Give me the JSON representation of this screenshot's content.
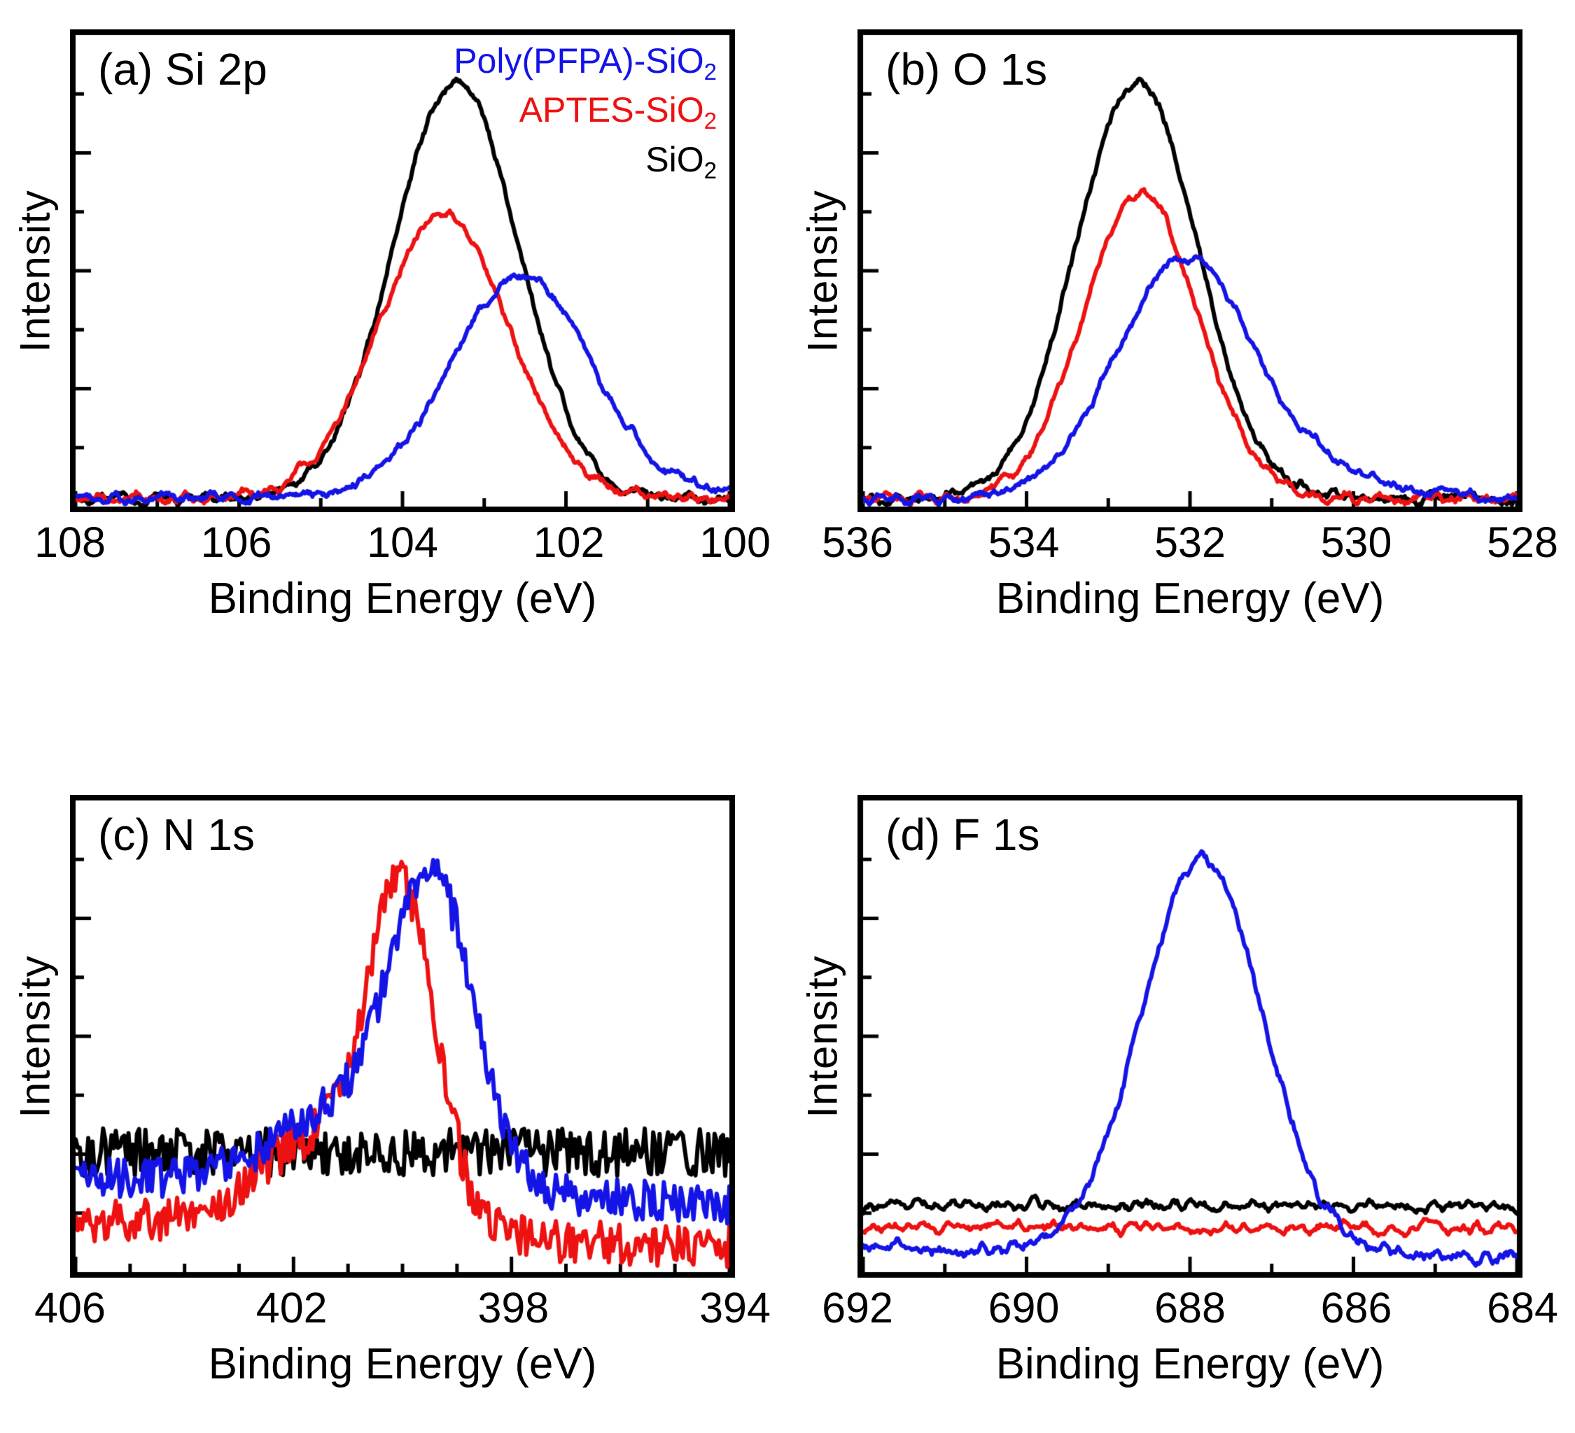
{
  "chart_data": [
    {
      "id": "a",
      "type": "line",
      "panel_label": "(a) Si 2p",
      "xlabel": "Binding Energy (eV)",
      "ylabel": "Intensity",
      "x_range": [
        108,
        100
      ],
      "xticks": [
        108,
        106,
        104,
        102,
        100
      ],
      "xtick_labels": [
        "108",
        "106",
        "104",
        "102",
        "100"
      ],
      "x_minor_step": 1,
      "ylim": [
        0,
        1.13
      ],
      "samples": 520,
      "grid": false,
      "series": [
        {
          "name": "SiO2",
          "color": "#000000",
          "baseline": 0.02,
          "noise": 0.012,
          "noise_smooth": 3,
          "peaks": [
            {
              "center": 103.35,
              "fwhm": 1.8,
              "amplitude": 1.0
            }
          ]
        },
        {
          "name": "APTES-SiO2",
          "color": "#ee1111",
          "baseline": 0.02,
          "noise": 0.012,
          "noise_smooth": 3,
          "peaks": [
            {
              "center": 103.5,
              "fwhm": 1.9,
              "amplitude": 0.68
            }
          ]
        },
        {
          "name": "Poly(PFPA)-SiO2",
          "color": "#1414e6",
          "baseline": 0.02,
          "noise": 0.012,
          "noise_smooth": 3,
          "peaks": [
            {
              "center": 102.55,
              "fwhm": 2.05,
              "amplitude": 0.53
            }
          ]
        }
      ],
      "legend": [
        {
          "text": "Poly(PFPA)-SiO",
          "sub": "2",
          "color": "#1414e6"
        },
        {
          "text": "APTES-SiO",
          "sub": "2",
          "color": "#ee1111"
        },
        {
          "text": "SiO",
          "sub": "2",
          "color": "#000000"
        }
      ]
    },
    {
      "id": "b",
      "type": "line",
      "panel_label": "(b) O 1s",
      "xlabel": "Binding Energy (eV)",
      "ylabel": "Intensity",
      "x_range": [
        536,
        528
      ],
      "xticks": [
        536,
        534,
        532,
        530,
        528
      ],
      "xtick_labels": [
        "536",
        "534",
        "532",
        "530",
        "528"
      ],
      "x_minor_step": 1,
      "ylim": [
        0,
        1.13
      ],
      "samples": 520,
      "grid": false,
      "series": [
        {
          "name": "SiO2",
          "color": "#000000",
          "baseline": 0.02,
          "noise": 0.012,
          "noise_smooth": 3,
          "peaks": [
            {
              "center": 532.65,
              "fwhm": 1.75,
              "amplitude": 1.0
            }
          ]
        },
        {
          "name": "APTES-SiO2",
          "color": "#ee1111",
          "baseline": 0.02,
          "noise": 0.012,
          "noise_smooth": 3,
          "peaks": [
            {
              "center": 532.6,
              "fwhm": 1.65,
              "amplitude": 0.73
            }
          ]
        },
        {
          "name": "Poly(PFPA)-SiO2",
          "color": "#1414e6",
          "baseline": 0.02,
          "noise": 0.012,
          "noise_smooth": 3,
          "peaks": [
            {
              "center": 532.1,
              "fwhm": 1.95,
              "amplitude": 0.55
            },
            {
              "center": 530.8,
              "fwhm": 2.4,
              "amplitude": 0.06
            }
          ]
        }
      ]
    },
    {
      "id": "c",
      "type": "line",
      "panel_label": "(c) N 1s",
      "xlabel": "Binding Energy (eV)",
      "ylabel": "Intensity",
      "x_range": [
        406,
        394
      ],
      "xticks": [
        406,
        402,
        398,
        394
      ],
      "xtick_labels": [
        "406",
        "402",
        "398",
        "394"
      ],
      "x_minor_step": 1,
      "ylim": [
        0,
        1.18
      ],
      "samples": 310,
      "grid": false,
      "series": [
        {
          "name": "SiO2",
          "color": "#000000",
          "baseline": 0.3,
          "noise": 0.06,
          "noise_smooth": 0,
          "peaks": []
        },
        {
          "name": "APTES-SiO2",
          "color": "#ee1111",
          "baseline": [
            0.13,
            0.06
          ],
          "noise": 0.055,
          "noise_smooth": 0,
          "peaks": [
            {
              "center": 400.0,
              "fwhm": 1.5,
              "amplitude": 0.8
            },
            {
              "center": 401.6,
              "fwhm": 2.6,
              "amplitude": 0.22
            }
          ]
        },
        {
          "name": "Poly(PFPA)-SiO2",
          "color": "#1414e6",
          "baseline": [
            0.24,
            0.17
          ],
          "noise": 0.05,
          "noise_smooth": 0,
          "peaks": [
            {
              "center": 399.45,
              "fwhm": 1.8,
              "amplitude": 0.75
            },
            {
              "center": 401.2,
              "fwhm": 2.8,
              "amplitude": 0.18
            }
          ]
        }
      ]
    },
    {
      "id": "d",
      "type": "line",
      "panel_label": "(d) F 1s",
      "xlabel": "Binding Energy (eV)",
      "ylabel": "Intensity",
      "x_range": [
        692,
        684
      ],
      "xticks": [
        692,
        690,
        688,
        686,
        684
      ],
      "xtick_labels": [
        "692",
        "690",
        "688",
        "686",
        "684"
      ],
      "x_minor_step": 1,
      "ylim": [
        0,
        1.1
      ],
      "samples": 430,
      "grid": false,
      "series": [
        {
          "name": "SiO2",
          "color": "#000000",
          "baseline": 0.155,
          "noise": 0.012,
          "noise_smooth": 2,
          "peaks": []
        },
        {
          "name": "APTES-SiO2",
          "color": "#ee1111",
          "baseline": 0.105,
          "noise": 0.012,
          "noise_smooth": 2,
          "peaks": []
        },
        {
          "name": "Poly(PFPA)-SiO2",
          "color": "#1414e6",
          "baseline": [
            0.055,
            0.035
          ],
          "noise": 0.015,
          "noise_smooth": 2,
          "peaks": [
            {
              "center": 687.85,
              "fwhm": 1.75,
              "amplitude": 0.92
            }
          ]
        }
      ]
    }
  ]
}
